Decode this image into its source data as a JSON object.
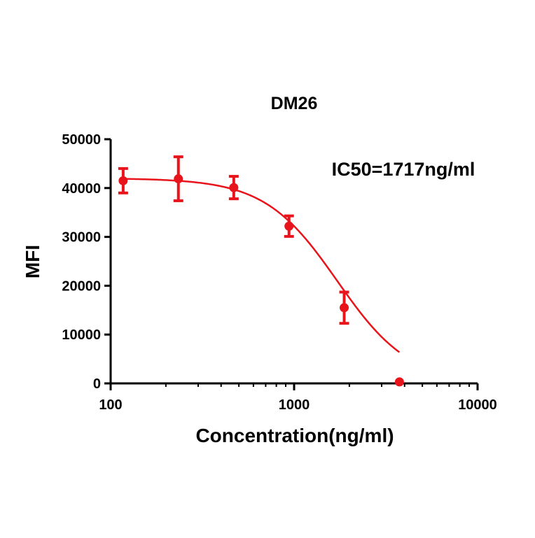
{
  "chart_data": {
    "type": "scatter",
    "title": "DM26",
    "annotation": "IC50=1717ng/ml",
    "xlabel": "Concentration(ng/ml)",
    "ylabel": "MFI",
    "x_scale": "log",
    "xlim": [
      100,
      10000
    ],
    "ylim": [
      0,
      50000
    ],
    "x_ticks": [
      "100",
      "1000",
      "10000"
    ],
    "y_ticks": [
      "0",
      "10000",
      "20000",
      "30000",
      "40000",
      "50000"
    ],
    "series": [
      {
        "color": "#e8141b",
        "points": [
          {
            "x": 117,
            "y": 41500,
            "err": 2500
          },
          {
            "x": 234,
            "y": 41900,
            "err": 4500
          },
          {
            "x": 469,
            "y": 40100,
            "err": 2300
          },
          {
            "x": 938,
            "y": 32200,
            "err": 2100
          },
          {
            "x": 1875,
            "y": 15500,
            "err": 3200
          },
          {
            "x": 3750,
            "y": 300,
            "err": 0
          }
        ],
        "fit": {
          "model": "four-parameter logistic",
          "top": 42000,
          "bottom": 0,
          "ic50": 1717,
          "hill": 2.2
        }
      }
    ],
    "grid": false,
    "legend": "none"
  }
}
